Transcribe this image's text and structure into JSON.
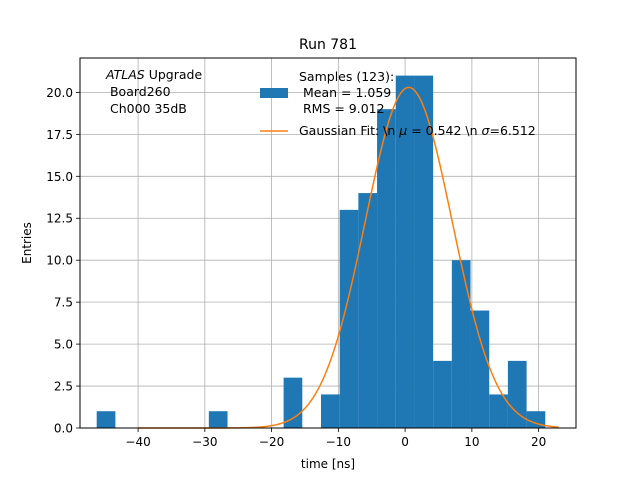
{
  "chart_data": {
    "type": "bar",
    "title": "Run 781",
    "xlabel": "time [ns]",
    "ylabel": "Entries",
    "xlim": [
      -48.7,
      25.6
    ],
    "ylim": [
      0,
      22.05
    ],
    "grid": true,
    "xticks": [
      -40,
      -30,
      -20,
      -10,
      0,
      10,
      20
    ],
    "xtick_labels": [
      "−40",
      "−30",
      "−20",
      "−10",
      "0",
      "10",
      "20"
    ],
    "yticks": [
      0,
      2.5,
      5,
      7.5,
      10,
      12.5,
      15,
      17.5,
      20
    ],
    "ytick_labels": [
      "0.0",
      "2.5",
      "5.0",
      "7.5",
      "10.0",
      "12.5",
      "15.0",
      "17.5",
      "20.0"
    ],
    "bin_edges": [
      -46.2,
      -43.4,
      -40.6,
      -37.8,
      -35.0,
      -32.2,
      -29.4,
      -26.6,
      -23.8,
      -21.0,
      -18.2,
      -15.4,
      -12.6,
      -9.8,
      -7.0,
      -4.2,
      -1.4,
      1.4,
      4.2,
      7.0,
      9.8,
      12.6,
      15.4,
      18.2,
      21.0,
      23.8
    ],
    "counts": [
      1,
      0,
      0,
      0,
      0,
      0,
      1,
      0,
      0,
      0,
      3,
      0,
      2,
      13,
      14,
      19,
      21,
      21,
      4,
      10,
      7,
      2,
      4,
      1,
      0
    ],
    "histogram_series_name": "Samples (123):\n Mean = 1.059\n RMS = 9.012",
    "fit": {
      "name": "Gaussian Fit: \\n $\\mu$ = 0.542 \\n $\\sigma$=6.512",
      "mu": 0.542,
      "sigma": 6.512,
      "amplitude": 20.3
    },
    "colors": {
      "histogram": "#1f77b4",
      "fit": "#ff7f0e",
      "grid": "#b0b0b0"
    },
    "annotation": {
      "line1_italic": "ATLAS",
      "line1_rest": " Upgrade",
      "line2": " Board260",
      "line3": " Ch000 35dB"
    },
    "legend": {
      "placement": "upper-right",
      "hist_lines": [
        "Samples (123):",
        " Mean = 1.059",
        " RMS = 9.012"
      ],
      "fit_prefix": "Gaussian Fit: \\n ",
      "fit_mu_symbol": "μ",
      "fit_mid": " = 0.542 \\n ",
      "fit_sigma_symbol": "σ",
      "fit_suffix": "=6.512"
    }
  }
}
